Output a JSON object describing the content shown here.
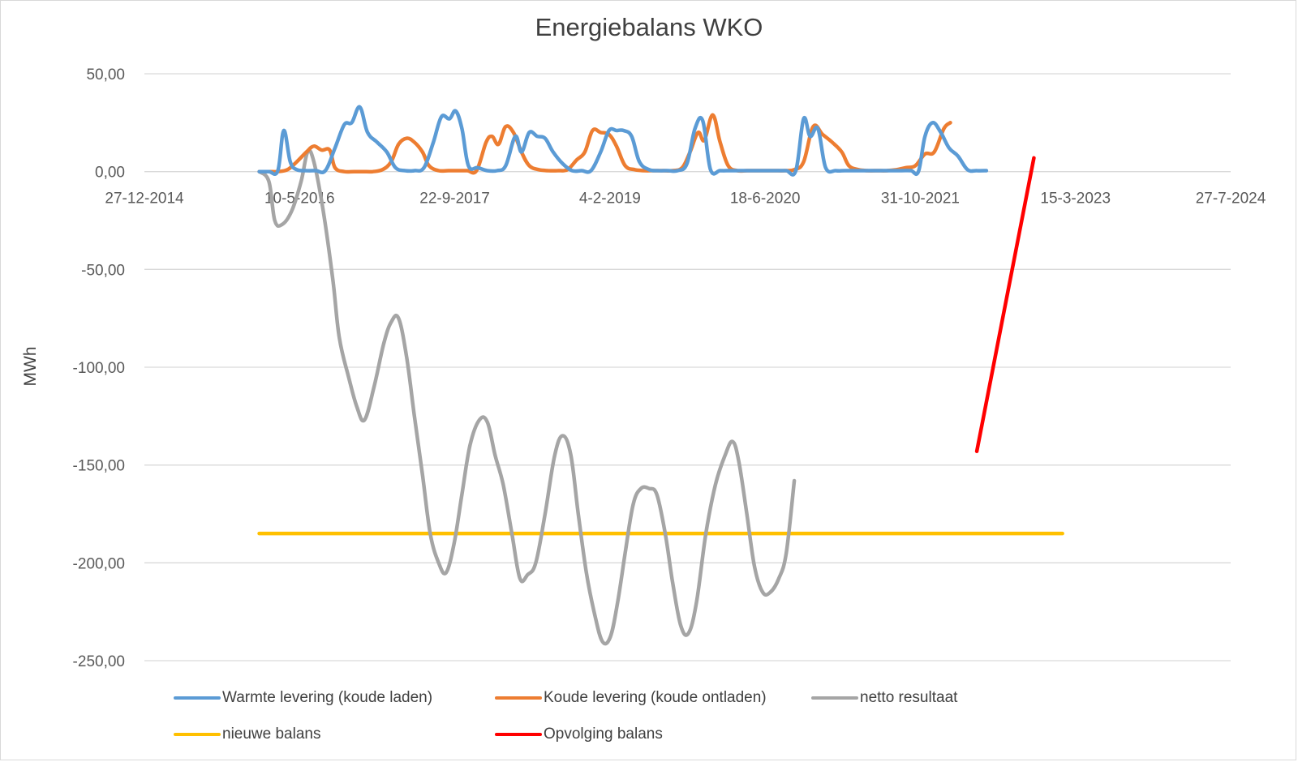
{
  "chart_data": {
    "type": "line",
    "title": "Energiebalans WKO",
    "xlabel": "",
    "ylabel": "MWh",
    "ylim": [
      -250,
      50
    ],
    "xlim": [
      "2014-12-27",
      "2024-07-27"
    ],
    "y_ticks": [
      "50,00",
      "0,00",
      "-50,00",
      "-100,00",
      "-150,00",
      "-200,00",
      "-250,00"
    ],
    "y_tick_values": [
      50,
      0,
      -50,
      -100,
      -150,
      -200,
      -250
    ],
    "x_ticks": [
      "27-12-2014",
      "10-5-2016",
      "22-9-2017",
      "4-2-2019",
      "18-6-2020",
      "31-10-2021",
      "15-3-2023",
      "27-7-2024"
    ],
    "x_tick_values": [
      "2014-12-27",
      "2016-05-10",
      "2017-09-22",
      "2019-02-04",
      "2020-06-18",
      "2021-10-31",
      "2023-03-15",
      "2024-07-27"
    ],
    "grid": true,
    "legend": "bottom",
    "series": [
      {
        "name": "Warmte levering (koude laden)",
        "color": "#5b9bd5",
        "points": [
          [
            "2016-01-01",
            0
          ],
          [
            "2016-02-01",
            0
          ],
          [
            "2016-03-01",
            0.5
          ],
          [
            "2016-03-20",
            21
          ],
          [
            "2016-04-10",
            5
          ],
          [
            "2016-05-01",
            1
          ],
          [
            "2016-06-01",
            0.5
          ],
          [
            "2016-07-01",
            0.5
          ],
          [
            "2016-08-01",
            0.5
          ],
          [
            "2016-09-01",
            12
          ],
          [
            "2016-10-01",
            24
          ],
          [
            "2016-10-25",
            25
          ],
          [
            "2016-11-20",
            33
          ],
          [
            "2016-12-15",
            20
          ],
          [
            "2017-01-15",
            15
          ],
          [
            "2017-02-15",
            10
          ],
          [
            "2017-03-15",
            2
          ],
          [
            "2017-04-15",
            0.5
          ],
          [
            "2017-05-15",
            0.5
          ],
          [
            "2017-06-15",
            2
          ],
          [
            "2017-07-15",
            15
          ],
          [
            "2017-08-10",
            28
          ],
          [
            "2017-09-05",
            27
          ],
          [
            "2017-09-25",
            31
          ],
          [
            "2017-10-15",
            22
          ],
          [
            "2017-11-05",
            3
          ],
          [
            "2017-12-05",
            2
          ],
          [
            "2018-01-05",
            0.5
          ],
          [
            "2018-02-05",
            0.5
          ],
          [
            "2018-03-05",
            3
          ],
          [
            "2018-04-05",
            18
          ],
          [
            "2018-04-25",
            10
          ],
          [
            "2018-05-20",
            20
          ],
          [
            "2018-06-15",
            18
          ],
          [
            "2018-07-10",
            17
          ],
          [
            "2018-08-05",
            10
          ],
          [
            "2018-09-05",
            4
          ],
          [
            "2018-10-05",
            0.5
          ],
          [
            "2018-11-05",
            0.5
          ],
          [
            "2018-12-05",
            0.5
          ],
          [
            "2019-01-05",
            10
          ],
          [
            "2019-02-01",
            21
          ],
          [
            "2019-02-25",
            21
          ],
          [
            "2019-03-20",
            21
          ],
          [
            "2019-04-15",
            18
          ],
          [
            "2019-05-10",
            5
          ],
          [
            "2019-06-10",
            1
          ],
          [
            "2019-07-10",
            0.5
          ],
          [
            "2019-08-10",
            0.5
          ],
          [
            "2019-09-10",
            0.5
          ],
          [
            "2019-10-10",
            4
          ],
          [
            "2019-11-05",
            22
          ],
          [
            "2019-11-30",
            26
          ],
          [
            "2019-12-25",
            1
          ],
          [
            "2020-01-25",
            0.5
          ],
          [
            "2020-02-25",
            0.5
          ],
          [
            "2020-03-25",
            0.5
          ],
          [
            "2020-04-25",
            0.5
          ],
          [
            "2020-05-25",
            0.5
          ],
          [
            "2020-06-25",
            0.5
          ],
          [
            "2020-07-25",
            0.5
          ],
          [
            "2020-08-25",
            0.5
          ],
          [
            "2020-09-25",
            0.5
          ],
          [
            "2020-10-20",
            27
          ],
          [
            "2020-11-10",
            18
          ],
          [
            "2020-12-05",
            22
          ],
          [
            "2020-12-30",
            2
          ],
          [
            "2021-02-01",
            0.5
          ],
          [
            "2021-03-01",
            0.5
          ],
          [
            "2021-04-01",
            0.5
          ],
          [
            "2021-05-01",
            0.5
          ],
          [
            "2021-06-01",
            0.5
          ],
          [
            "2021-07-01",
            0.5
          ],
          [
            "2021-08-01",
            0.5
          ],
          [
            "2021-09-01",
            0.5
          ],
          [
            "2021-10-01",
            0.5
          ],
          [
            "2021-10-25",
            0
          ],
          [
            "2021-11-15",
            18
          ],
          [
            "2021-12-10",
            25
          ],
          [
            "2022-01-05",
            20
          ],
          [
            "2022-02-01",
            12
          ],
          [
            "2022-03-01",
            8
          ],
          [
            "2022-04-01",
            1
          ],
          [
            "2022-05-01",
            0.5
          ],
          [
            "2022-06-01",
            0.5
          ]
        ]
      },
      {
        "name": "Koude levering (koude ontladen)",
        "color": "#ed7d31",
        "points": [
          [
            "2016-01-01",
            0
          ],
          [
            "2016-02-01",
            0
          ],
          [
            "2016-03-01",
            0
          ],
          [
            "2016-04-01",
            1
          ],
          [
            "2016-05-01",
            5
          ],
          [
            "2016-06-01",
            10
          ],
          [
            "2016-06-25",
            13
          ],
          [
            "2016-07-20",
            11
          ],
          [
            "2016-08-15",
            11
          ],
          [
            "2016-09-01",
            2
          ],
          [
            "2016-10-01",
            0
          ],
          [
            "2016-11-01",
            0
          ],
          [
            "2016-12-01",
            0
          ],
          [
            "2017-01-01",
            0
          ],
          [
            "2017-02-01",
            1
          ],
          [
            "2017-03-01",
            5
          ],
          [
            "2017-03-25",
            14
          ],
          [
            "2017-04-20",
            17
          ],
          [
            "2017-05-15",
            15
          ],
          [
            "2017-06-10",
            10
          ],
          [
            "2017-07-01",
            3
          ],
          [
            "2017-08-01",
            0.5
          ],
          [
            "2017-09-01",
            0.5
          ],
          [
            "2017-10-01",
            0.5
          ],
          [
            "2017-11-01",
            0.5
          ],
          [
            "2017-12-01",
            0.5
          ],
          [
            "2018-01-01",
            15
          ],
          [
            "2018-01-20",
            18
          ],
          [
            "2018-02-10",
            14
          ],
          [
            "2018-03-05",
            23
          ],
          [
            "2018-03-30",
            20
          ],
          [
            "2018-04-25",
            10
          ],
          [
            "2018-05-20",
            3
          ],
          [
            "2018-06-20",
            1
          ],
          [
            "2018-07-20",
            0.5
          ],
          [
            "2018-08-20",
            0.5
          ],
          [
            "2018-09-20",
            1
          ],
          [
            "2018-10-20",
            6
          ],
          [
            "2018-11-15",
            10
          ],
          [
            "2018-12-10",
            21
          ],
          [
            "2019-01-05",
            20
          ],
          [
            "2019-02-01",
            19
          ],
          [
            "2019-02-25",
            13
          ],
          [
            "2019-03-25",
            3
          ],
          [
            "2019-04-25",
            1
          ],
          [
            "2019-05-25",
            0.5
          ],
          [
            "2019-06-25",
            0.5
          ],
          [
            "2019-07-25",
            0.5
          ],
          [
            "2019-08-25",
            0.5
          ],
          [
            "2019-09-25",
            2
          ],
          [
            "2019-10-20",
            10
          ],
          [
            "2019-11-15",
            20
          ],
          [
            "2019-12-05",
            16
          ],
          [
            "2020-01-01",
            29
          ],
          [
            "2020-01-25",
            15
          ],
          [
            "2020-02-20",
            3
          ],
          [
            "2020-03-20",
            0.5
          ],
          [
            "2020-04-20",
            0.5
          ],
          [
            "2020-05-20",
            0.5
          ],
          [
            "2020-06-20",
            0.5
          ],
          [
            "2020-07-20",
            0.5
          ],
          [
            "2020-08-20",
            0.5
          ],
          [
            "2020-09-20",
            1
          ],
          [
            "2020-10-20",
            5
          ],
          [
            "2020-11-20",
            23
          ],
          [
            "2020-12-20",
            19
          ],
          [
            "2021-01-20",
            15
          ],
          [
            "2021-02-20",
            10
          ],
          [
            "2021-03-15",
            3
          ],
          [
            "2021-04-15",
            1
          ],
          [
            "2021-05-15",
            0.5
          ],
          [
            "2021-06-15",
            0.5
          ],
          [
            "2021-07-15",
            0.5
          ],
          [
            "2021-08-15",
            1
          ],
          [
            "2021-09-15",
            2
          ],
          [
            "2021-10-15",
            3
          ],
          [
            "2021-11-15",
            9
          ],
          [
            "2021-12-15",
            10
          ],
          [
            "2022-01-15",
            22
          ],
          [
            "2022-02-05",
            25
          ]
        ]
      },
      {
        "name": "netto resultaat",
        "color": "#a5a5a5",
        "points": [
          [
            "2016-01-01",
            0
          ],
          [
            "2016-02-01",
            -5
          ],
          [
            "2016-02-20",
            -25
          ],
          [
            "2016-03-15",
            -27
          ],
          [
            "2016-04-15",
            -20
          ],
          [
            "2016-05-15",
            -5
          ],
          [
            "2016-06-05",
            10
          ],
          [
            "2016-06-25",
            5
          ],
          [
            "2016-07-25",
            -20
          ],
          [
            "2016-08-25",
            -55
          ],
          [
            "2016-09-15",
            -85
          ],
          [
            "2016-10-15",
            -105
          ],
          [
            "2016-11-10",
            -120
          ],
          [
            "2016-12-05",
            -127
          ],
          [
            "2017-01-05",
            -110
          ],
          [
            "2017-02-05",
            -88
          ],
          [
            "2017-03-01",
            -77
          ],
          [
            "2017-03-25",
            -75
          ],
          [
            "2017-04-20",
            -95
          ],
          [
            "2017-05-15",
            -125
          ],
          [
            "2017-06-10",
            -155
          ],
          [
            "2017-07-05",
            -185
          ],
          [
            "2017-08-01",
            -200
          ],
          [
            "2017-08-25",
            -205
          ],
          [
            "2017-09-20",
            -190
          ],
          [
            "2017-10-15",
            -165
          ],
          [
            "2017-11-10",
            -140
          ],
          [
            "2017-12-10",
            -127
          ],
          [
            "2018-01-05",
            -128
          ],
          [
            "2018-01-30",
            -145
          ],
          [
            "2018-02-25",
            -160
          ],
          [
            "2018-03-25",
            -185
          ],
          [
            "2018-04-20",
            -208
          ],
          [
            "2018-05-15",
            -206
          ],
          [
            "2018-06-10",
            -200
          ],
          [
            "2018-07-10",
            -175
          ],
          [
            "2018-08-10",
            -145
          ],
          [
            "2018-09-05",
            -135
          ],
          [
            "2018-10-01",
            -145
          ],
          [
            "2018-10-25",
            -175
          ],
          [
            "2018-11-20",
            -205
          ],
          [
            "2018-12-15",
            -225
          ],
          [
            "2019-01-10",
            -240
          ],
          [
            "2019-02-05",
            -238
          ],
          [
            "2019-03-01",
            -220
          ],
          [
            "2019-03-25",
            -195
          ],
          [
            "2019-04-20",
            -170
          ],
          [
            "2019-05-15",
            -162
          ],
          [
            "2019-06-10",
            -162
          ],
          [
            "2019-07-05",
            -165
          ],
          [
            "2019-08-01",
            -185
          ],
          [
            "2019-08-25",
            -210
          ],
          [
            "2019-09-20",
            -232
          ],
          [
            "2019-10-15",
            -236
          ],
          [
            "2019-11-10",
            -220
          ],
          [
            "2019-12-10",
            -185
          ],
          [
            "2020-01-10",
            -160
          ],
          [
            "2020-02-10",
            -145
          ],
          [
            "2020-03-05",
            -138
          ],
          [
            "2020-03-25",
            -148
          ],
          [
            "2020-04-20",
            -175
          ],
          [
            "2020-05-15",
            -202
          ],
          [
            "2020-06-10",
            -215
          ],
          [
            "2020-07-05",
            -215
          ],
          [
            "2020-08-01",
            -208
          ],
          [
            "2020-08-25",
            -195
          ],
          [
            "2020-09-20",
            -158
          ]
        ]
      },
      {
        "name": "nieuwe balans",
        "color": "#ffc000",
        "points": [
          [
            "2016-01-01",
            -185
          ],
          [
            "2023-02-01",
            -185
          ]
        ]
      },
      {
        "name": "Opvolging balans",
        "color": "#ff0000",
        "points": [
          [
            "2022-05-01",
            -143
          ],
          [
            "2022-11-01",
            7
          ]
        ]
      }
    ]
  }
}
